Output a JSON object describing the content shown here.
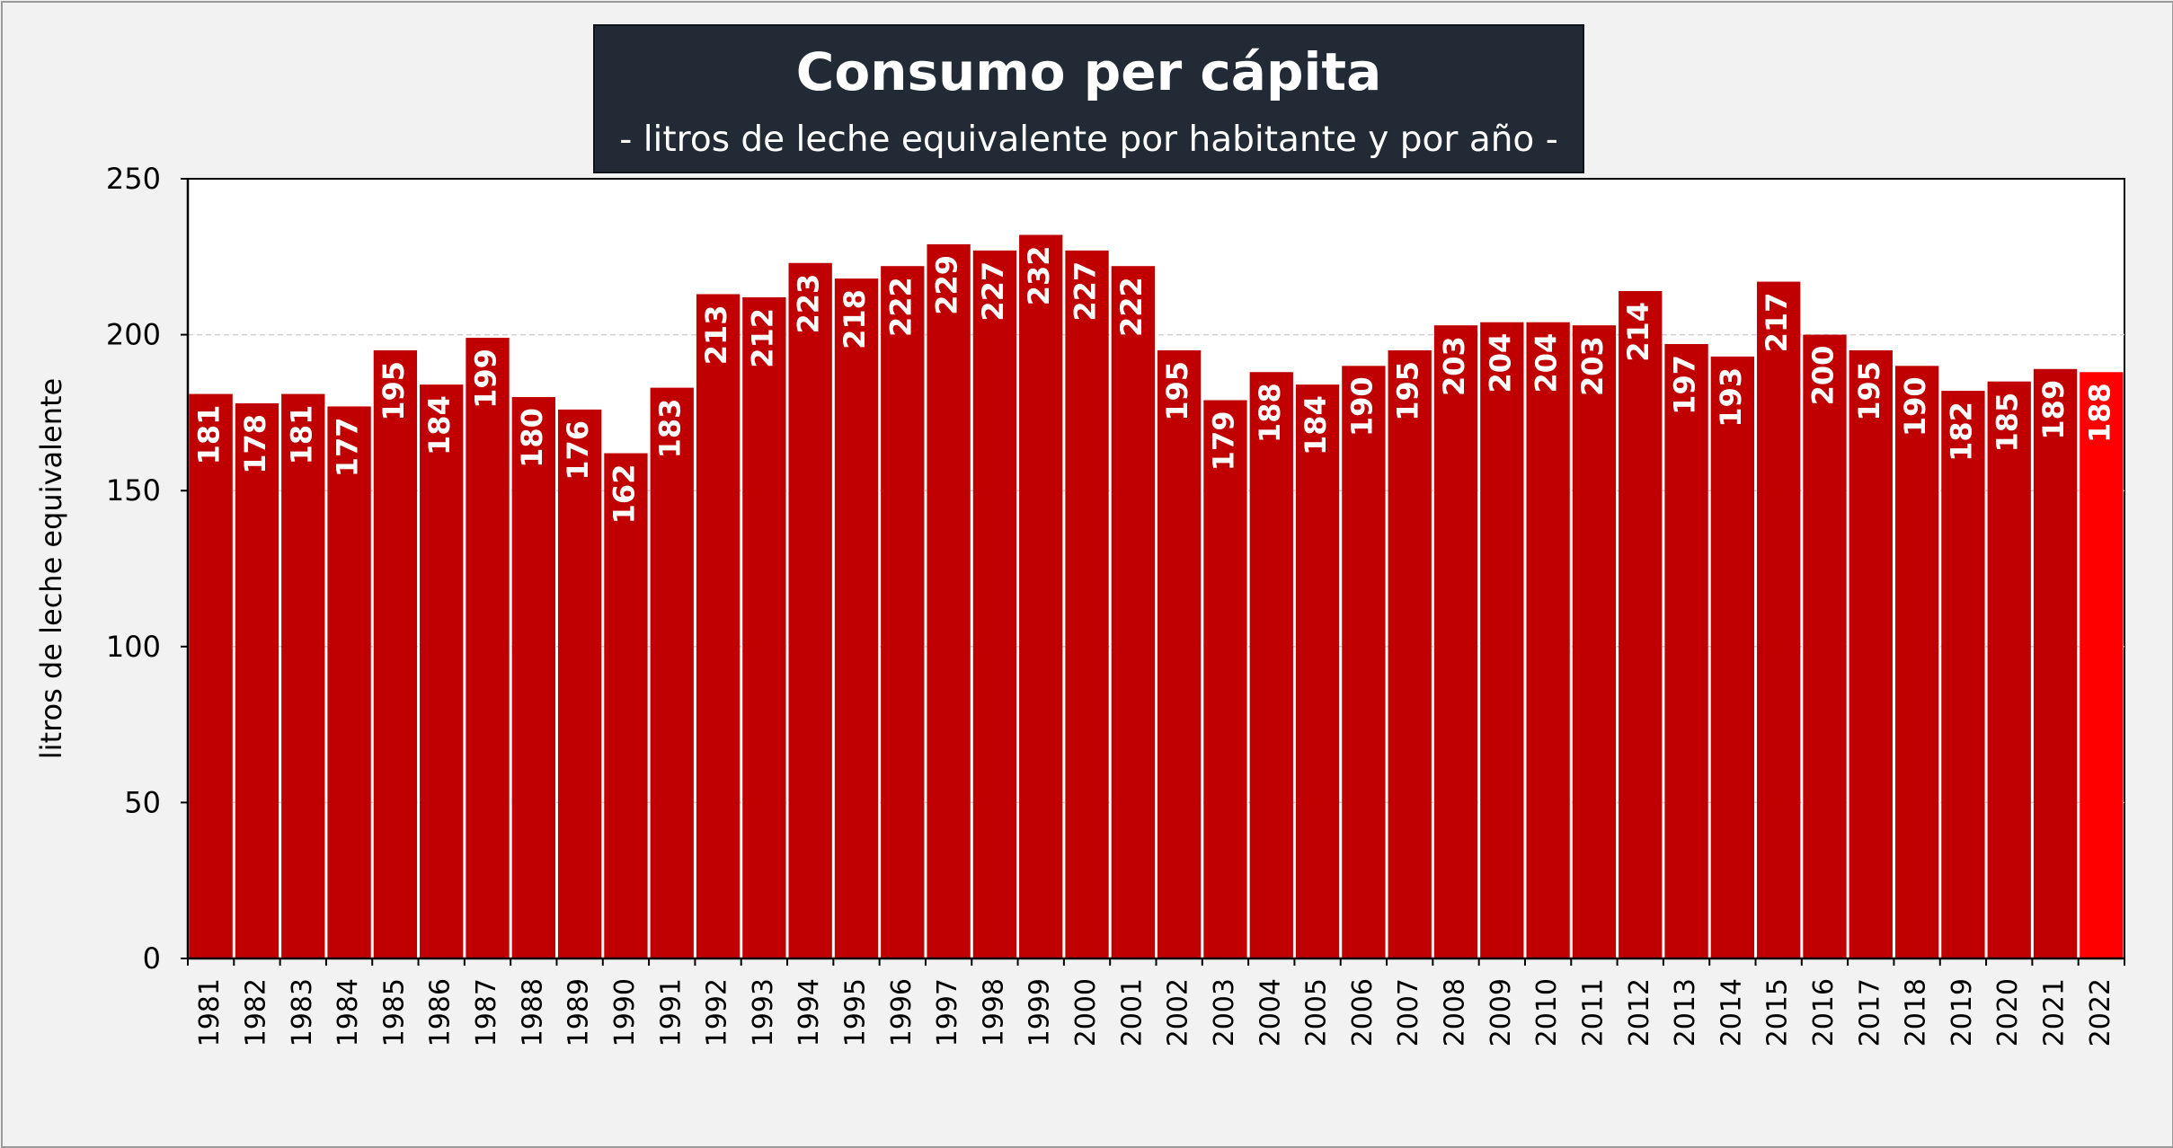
{
  "title": "Consumo per cápita",
  "subtitle": "- litros de leche equivalente por habitante y por año -",
  "colors": {
    "bar": "#c00000",
    "bar_highlight": "#ff0000",
    "title_bg": "#222a35",
    "background": "#f2f2f2",
    "plot_bg": "#ffffff"
  },
  "chart_data": {
    "type": "bar",
    "title": "Consumo per cápita",
    "subtitle": "- litros de leche equivalente por habitante y por año -",
    "xlabel": "",
    "ylabel": "litros de leche equivalente",
    "ylim": [
      0,
      250
    ],
    "yticks": [
      0,
      50,
      100,
      150,
      200,
      250
    ],
    "grid": "horizontal dashed at 200",
    "legend": "none",
    "highlighted_category": "2022",
    "categories": [
      "1981",
      "1982",
      "1983",
      "1984",
      "1985",
      "1986",
      "1987",
      "1988",
      "1989",
      "1990",
      "1991",
      "1992",
      "1993",
      "1994",
      "1995",
      "1996",
      "1997",
      "1998",
      "1999",
      "2000",
      "2001",
      "2002",
      "2003",
      "2004",
      "2005",
      "2006",
      "2007",
      "2008",
      "2009",
      "2010",
      "2011",
      "2012",
      "2013",
      "2014",
      "2015",
      "2016",
      "2017",
      "2018",
      "2019",
      "2020",
      "2021",
      "2022"
    ],
    "values": [
      181,
      178,
      181,
      177,
      195,
      184,
      199,
      180,
      176,
      162,
      183,
      213,
      212,
      223,
      218,
      222,
      229,
      227,
      232,
      227,
      222,
      195,
      179,
      188,
      184,
      190,
      195,
      203,
      204,
      204,
      203,
      214,
      197,
      193,
      217,
      200,
      195,
      190,
      182,
      185,
      189,
      188
    ]
  }
}
